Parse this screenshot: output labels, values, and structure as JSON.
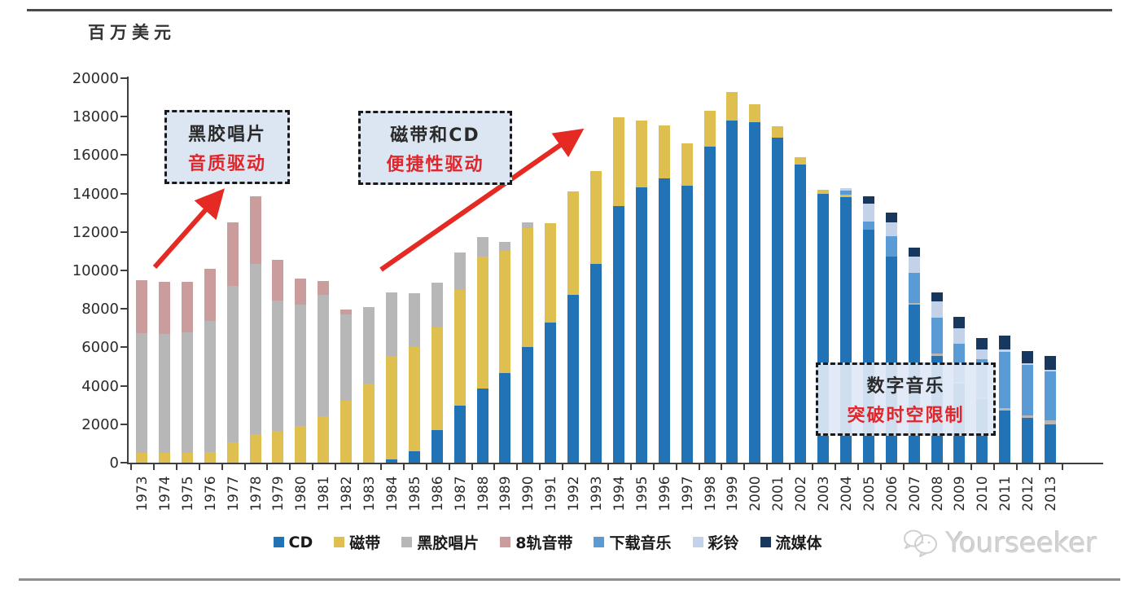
{
  "unit_label": "百万美元",
  "watermark": {
    "brand": "Yourseeker"
  },
  "annotations": [
    {
      "id": "vinyl-era",
      "line1": "黑胶唱片",
      "line2": "音质驱动"
    },
    {
      "id": "tape-cd-era",
      "line1": "磁带和CD",
      "line2": "便捷性驱动"
    },
    {
      "id": "digital-era",
      "line1": "数字音乐",
      "line2": "突破时空限制"
    }
  ],
  "colors": {
    "accent_red": "#e52a23",
    "annotation_bg": "#dce6f2",
    "annotation_border": "#1a1a1a",
    "axis": "#3f3f3f",
    "watermark_gray": "#d3d3d3"
  },
  "chart_data": {
    "type": "bar",
    "stacked": true,
    "title": "",
    "unit": "百万美元",
    "xlabel": "",
    "ylabel": "百万美元",
    "ylim": [
      0,
      20000
    ],
    "y_ticks": [
      0,
      2000,
      4000,
      6000,
      8000,
      10000,
      12000,
      14000,
      16000,
      18000,
      20000
    ],
    "grid": false,
    "legend_position": "bottom",
    "categories": [
      1973,
      1974,
      1975,
      1976,
      1977,
      1978,
      1979,
      1980,
      1981,
      1982,
      1983,
      1984,
      1985,
      1986,
      1987,
      1988,
      1989,
      1990,
      1991,
      1992,
      1993,
      1994,
      1995,
      1996,
      1997,
      1998,
      1999,
      2000,
      2001,
      2002,
      2003,
      2004,
      2005,
      2006,
      2007,
      2008,
      2009,
      2010,
      2011,
      2012,
      2013
    ],
    "series": [
      {
        "name": "CD",
        "color": "#2273b6",
        "values": [
          0,
          0,
          0,
          0,
          0,
          0,
          0,
          0,
          0,
          0,
          0,
          150,
          600,
          1690,
          2970,
          3850,
          4680,
          6030,
          7300,
          8730,
          10360,
          13350,
          14340,
          14770,
          14410,
          16430,
          17800,
          17700,
          16900,
          15500,
          14000,
          13800,
          12100,
          10700,
          8200,
          5560,
          4100,
          3300,
          2700,
          2330,
          1980
        ]
      },
      {
        "name": "磁带",
        "color": "#dfbf4f",
        "values": [
          500,
          500,
          500,
          550,
          1080,
          1490,
          1650,
          1920,
          2400,
          3200,
          4100,
          5380,
          5430,
          5330,
          6010,
          6890,
          6320,
          6170,
          5150,
          5400,
          4830,
          4600,
          3450,
          2780,
          2190,
          1870,
          1500,
          950,
          600,
          400,
          200,
          150,
          0,
          0,
          0,
          0,
          0,
          0,
          0,
          0,
          0
        ]
      },
      {
        "name": "黑胶唱片",
        "color": "#b7b7b7",
        "values": [
          6240,
          6200,
          6300,
          6830,
          8100,
          8840,
          6790,
          6280,
          6340,
          4530,
          4000,
          3340,
          2770,
          2340,
          1950,
          1000,
          500,
          300,
          0,
          0,
          0,
          0,
          0,
          0,
          0,
          0,
          0,
          0,
          0,
          0,
          0,
          0,
          0,
          0,
          100,
          100,
          100,
          100,
          150,
          140,
          215
        ]
      },
      {
        "name": "8轨音带",
        "color": "#cb9c9c",
        "values": [
          2770,
          2700,
          2600,
          2700,
          3310,
          3530,
          2130,
          1390,
          730,
          215,
          0,
          0,
          0,
          0,
          0,
          0,
          0,
          0,
          0,
          0,
          0,
          0,
          0,
          0,
          0,
          0,
          0,
          0,
          0,
          0,
          0,
          0,
          0,
          0,
          0,
          0,
          0,
          0,
          0,
          0,
          0
        ]
      },
      {
        "name": "下载音乐",
        "color": "#5b9bd5",
        "values": [
          0,
          0,
          0,
          0,
          0,
          0,
          0,
          0,
          0,
          0,
          0,
          0,
          0,
          0,
          0,
          0,
          0,
          0,
          0,
          0,
          0,
          0,
          0,
          0,
          0,
          0,
          0,
          0,
          0,
          0,
          0,
          190,
          460,
          1080,
          1570,
          1900,
          2000,
          2000,
          2900,
          2600,
          2550
        ]
      },
      {
        "name": "彩铃",
        "color": "#c3d2e8",
        "values": [
          0,
          0,
          0,
          0,
          0,
          0,
          0,
          0,
          0,
          0,
          0,
          0,
          0,
          0,
          0,
          0,
          0,
          0,
          0,
          0,
          0,
          0,
          0,
          0,
          0,
          0,
          0,
          0,
          0,
          0,
          0,
          150,
          900,
          710,
          860,
          850,
          800,
          500,
          150,
          100,
          80
        ]
      },
      {
        "name": "流媒体",
        "color": "#17375e",
        "values": [
          0,
          0,
          0,
          0,
          0,
          0,
          0,
          0,
          0,
          0,
          0,
          0,
          0,
          0,
          0,
          0,
          0,
          0,
          0,
          0,
          0,
          0,
          0,
          0,
          0,
          0,
          0,
          0,
          0,
          0,
          0,
          0,
          380,
          500,
          470,
          460,
          600,
          600,
          700,
          640,
          720
        ]
      }
    ]
  }
}
